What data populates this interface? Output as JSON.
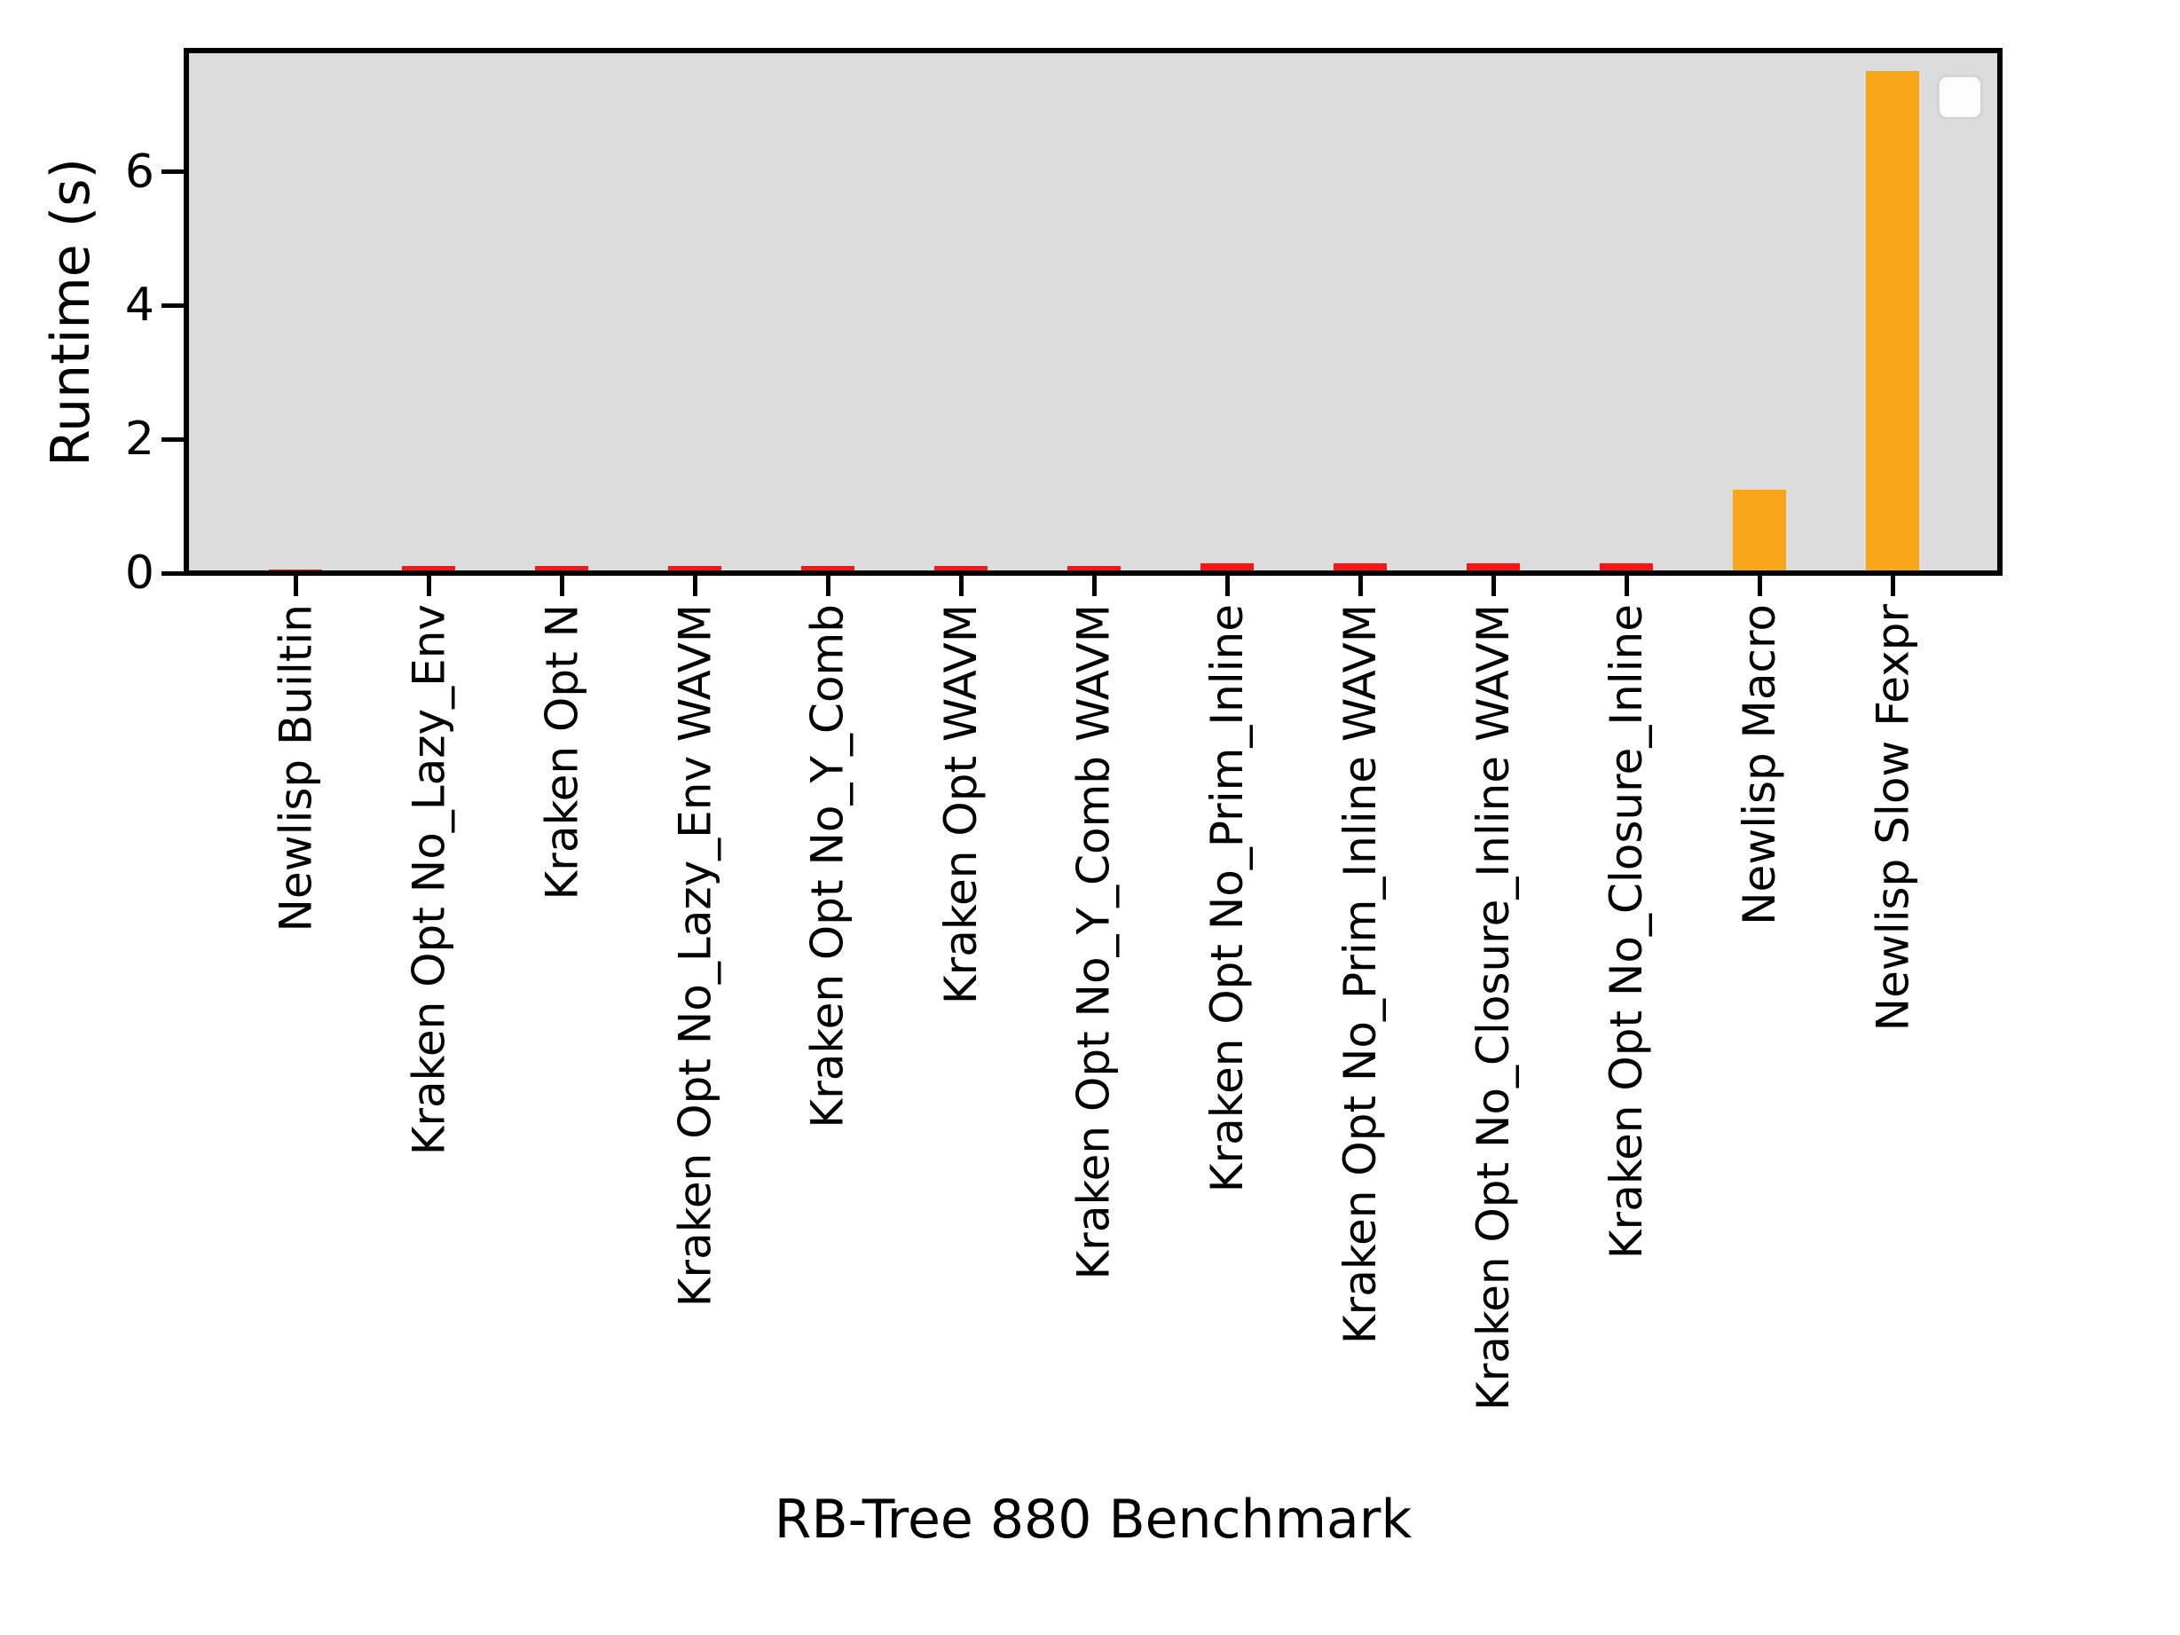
{
  "chart_data": {
    "type": "bar",
    "title": "",
    "xlabel": "RB-Tree 880 Benchmark",
    "ylabel": "Runtime (s)",
    "categories": [
      "Newlisp Builtin",
      "Kraken Opt No_Lazy_Env",
      "Kraken Opt N",
      "Kraken Opt No_Lazy_Env WAVM",
      "Kraken Opt No_Y_Comb",
      "Kraken Opt WAVM",
      "Kraken Opt No_Y_Comb WAVM",
      "Kraken Opt No_Prim_Inline",
      "Kraken Opt No_Prim_Inline WAVM",
      "Kraken Opt No_Closure_Inline WAVM",
      "Kraken Opt No_Closure_Inline",
      "Newlisp Macro",
      "Newlisp Slow Fexpr"
    ],
    "values": [
      0.01,
      0.06,
      0.06,
      0.06,
      0.06,
      0.06,
      0.07,
      0.1,
      0.1,
      0.1,
      0.1,
      1.21,
      7.47
    ],
    "bar_colors": [
      "#f81515",
      "#f81515",
      "#f81515",
      "#f81515",
      "#f81515",
      "#f81515",
      "#f81515",
      "#f81515",
      "#f81515",
      "#f81515",
      "#f81515",
      "#f9a61b",
      "#f9a61b"
    ],
    "yticks": [
      0,
      2,
      4,
      6
    ],
    "ylim": [
      0,
      7.8
    ],
    "grid": false,
    "plot_background": "#dcdcdc",
    "figure_background": "#ffffff",
    "legend": {
      "visible": true,
      "position": "upper right",
      "entries": []
    }
  }
}
